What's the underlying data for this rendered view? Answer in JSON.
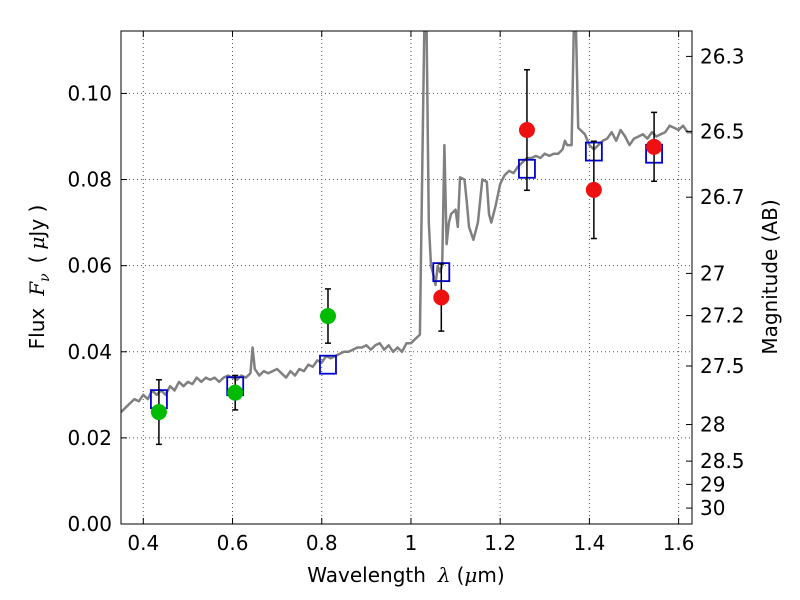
{
  "chart_data": {
    "type": "scatter",
    "xlabel_prefix": "Wavelength",
    "xlabel_symbol": "λ",
    "xlabel_unit_open": "(",
    "xlabel_unit_mu": "μ",
    "xlabel_unit_rest": "m)",
    "ylabel_prefix": "Flux",
    "ylabel_symbol_F": "F",
    "ylabel_symbol_nu": "ν",
    "ylabel_unit_open": "(",
    "ylabel_unit_mu": "μ",
    "ylabel_unit_rest": "Jy )",
    "ylabel_right": "Magnitude (AB)",
    "xlim": [
      0.35,
      1.63
    ],
    "ylim": [
      0.0,
      0.1145
    ],
    "grid": true,
    "x_ticks": [
      0.4,
      0.6,
      0.8,
      1.0,
      1.2,
      1.4,
      1.6
    ],
    "x_tick_labels": [
      "0.4",
      "0.6",
      "0.8",
      "1",
      "1.2",
      "1.4",
      "1.6"
    ],
    "y_ticks": [
      0.0,
      0.02,
      0.04,
      0.06,
      0.08,
      0.1
    ],
    "y_tick_labels": [
      "0.00",
      "0.02",
      "0.04",
      "0.06",
      "0.08",
      "0.10"
    ],
    "right_ticks": [
      {
        "label": "26.3",
        "flux": 0.1086
      },
      {
        "label": "26.5",
        "flux": 0.0912
      },
      {
        "label": "26.7",
        "flux": 0.0759
      },
      {
        "label": "27",
        "flux": 0.0582
      },
      {
        "label": "27.2",
        "flux": 0.0484
      },
      {
        "label": "27.5",
        "flux": 0.0367
      },
      {
        "label": "28",
        "flux": 0.0231
      },
      {
        "label": "28.5",
        "flux": 0.0146
      },
      {
        "label": "29",
        "flux": 0.0092
      },
      {
        "label": "30",
        "flux": 0.0037
      }
    ],
    "right_tick_marks_flux": [
      0.1086,
      0.0912,
      0.0759,
      0.0582,
      0.0484,
      0.0367,
      0.0231,
      0.0146,
      0.0092,
      0.0037
    ],
    "colors": {
      "spectrum": "#808080",
      "model": "#0000cc",
      "observed_optical": "#00bb00",
      "observed_ir": "#ee1111",
      "errorbar": "#000000",
      "grid": "#555555"
    },
    "series": [
      {
        "kind": "spectrum",
        "points": [
          [
            0.35,
            0.026
          ],
          [
            0.36,
            0.027
          ],
          [
            0.37,
            0.028
          ],
          [
            0.38,
            0.029
          ],
          [
            0.39,
            0.0285
          ],
          [
            0.4,
            0.03
          ],
          [
            0.41,
            0.029
          ],
          [
            0.42,
            0.031
          ],
          [
            0.43,
            0.03
          ],
          [
            0.44,
            0.031
          ],
          [
            0.45,
            0.03
          ],
          [
            0.46,
            0.032
          ],
          [
            0.47,
            0.031
          ],
          [
            0.48,
            0.033
          ],
          [
            0.49,
            0.032
          ],
          [
            0.5,
            0.033
          ],
          [
            0.51,
            0.0325
          ],
          [
            0.52,
            0.034
          ],
          [
            0.53,
            0.033
          ],
          [
            0.54,
            0.034
          ],
          [
            0.55,
            0.0335
          ],
          [
            0.56,
            0.034
          ],
          [
            0.57,
            0.033
          ],
          [
            0.58,
            0.034
          ],
          [
            0.59,
            0.0345
          ],
          [
            0.6,
            0.034
          ],
          [
            0.61,
            0.0335
          ],
          [
            0.62,
            0.0345
          ],
          [
            0.63,
            0.034
          ],
          [
            0.64,
            0.035
          ],
          [
            0.645,
            0.041
          ],
          [
            0.65,
            0.036
          ],
          [
            0.66,
            0.0345
          ],
          [
            0.67,
            0.0355
          ],
          [
            0.68,
            0.035
          ],
          [
            0.69,
            0.0355
          ],
          [
            0.7,
            0.036
          ],
          [
            0.71,
            0.035
          ],
          [
            0.72,
            0.034
          ],
          [
            0.73,
            0.0355
          ],
          [
            0.74,
            0.0345
          ],
          [
            0.75,
            0.036
          ],
          [
            0.76,
            0.0355
          ],
          [
            0.77,
            0.037
          ],
          [
            0.78,
            0.0365
          ],
          [
            0.79,
            0.038
          ],
          [
            0.8,
            0.0375
          ],
          [
            0.81,
            0.039
          ],
          [
            0.82,
            0.0385
          ],
          [
            0.83,
            0.039
          ],
          [
            0.84,
            0.0395
          ],
          [
            0.85,
            0.04
          ],
          [
            0.86,
            0.04
          ],
          [
            0.87,
            0.0405
          ],
          [
            0.88,
            0.041
          ],
          [
            0.89,
            0.041
          ],
          [
            0.9,
            0.0415
          ],
          [
            0.91,
            0.0405
          ],
          [
            0.92,
            0.0415
          ],
          [
            0.93,
            0.042
          ],
          [
            0.94,
            0.0405
          ],
          [
            0.95,
            0.0415
          ],
          [
            0.96,
            0.04
          ],
          [
            0.97,
            0.041
          ],
          [
            0.98,
            0.04
          ],
          [
            0.99,
            0.042
          ],
          [
            1.0,
            0.042
          ],
          [
            1.01,
            0.043
          ],
          [
            1.02,
            0.044
          ],
          [
            1.025,
            0.08
          ],
          [
            1.03,
            0.115
          ],
          [
            1.035,
            0.115
          ],
          [
            1.04,
            0.07
          ],
          [
            1.045,
            0.06
          ],
          [
            1.05,
            0.058
          ],
          [
            1.055,
            0.0555
          ],
          [
            1.06,
            0.06
          ],
          [
            1.065,
            0.0585
          ],
          [
            1.07,
            0.06
          ],
          [
            1.075,
            0.088
          ],
          [
            1.08,
            0.065
          ],
          [
            1.085,
            0.07
          ],
          [
            1.09,
            0.072
          ],
          [
            1.1,
            0.073
          ],
          [
            1.105,
            0.069
          ],
          [
            1.11,
            0.0805
          ],
          [
            1.12,
            0.08
          ],
          [
            1.125,
            0.075
          ],
          [
            1.13,
            0.069
          ],
          [
            1.14,
            0.066
          ],
          [
            1.15,
            0.07
          ],
          [
            1.16,
            0.08
          ],
          [
            1.17,
            0.0795
          ],
          [
            1.175,
            0.072
          ],
          [
            1.18,
            0.07
          ],
          [
            1.19,
            0.074
          ],
          [
            1.2,
            0.079
          ],
          [
            1.21,
            0.081
          ],
          [
            1.22,
            0.082
          ],
          [
            1.23,
            0.0815
          ],
          [
            1.24,
            0.083
          ],
          [
            1.25,
            0.084
          ],
          [
            1.26,
            0.085
          ],
          [
            1.27,
            0.085
          ],
          [
            1.28,
            0.0855
          ],
          [
            1.29,
            0.085
          ],
          [
            1.3,
            0.086
          ],
          [
            1.31,
            0.0855
          ],
          [
            1.32,
            0.086
          ],
          [
            1.33,
            0.086
          ],
          [
            1.34,
            0.087
          ],
          [
            1.345,
            0.089
          ],
          [
            1.35,
            0.088
          ],
          [
            1.36,
            0.088
          ],
          [
            1.365,
            0.115
          ],
          [
            1.37,
            0.115
          ],
          [
            1.375,
            0.092
          ],
          [
            1.38,
            0.0915
          ],
          [
            1.39,
            0.0905
          ],
          [
            1.4,
            0.088
          ],
          [
            1.41,
            0.087
          ],
          [
            1.42,
            0.088
          ],
          [
            1.43,
            0.089
          ],
          [
            1.44,
            0.0895
          ],
          [
            1.45,
            0.091
          ],
          [
            1.46,
            0.089
          ],
          [
            1.47,
            0.0915
          ],
          [
            1.48,
            0.09
          ],
          [
            1.49,
            0.088
          ],
          [
            1.5,
            0.0895
          ],
          [
            1.51,
            0.09
          ],
          [
            1.52,
            0.0905
          ],
          [
            1.53,
            0.0895
          ],
          [
            1.54,
            0.091
          ],
          [
            1.55,
            0.09
          ],
          [
            1.56,
            0.0905
          ],
          [
            1.57,
            0.091
          ],
          [
            1.58,
            0.0925
          ],
          [
            1.59,
            0.092
          ],
          [
            1.6,
            0.0915
          ],
          [
            1.61,
            0.0925
          ],
          [
            1.62,
            0.091
          ],
          [
            1.63,
            0.091
          ]
        ]
      },
      {
        "kind": "model_photometry",
        "points": [
          [
            0.435,
            0.029
          ],
          [
            0.606,
            0.032
          ],
          [
            0.814,
            0.037
          ],
          [
            1.068,
            0.0585
          ],
          [
            1.26,
            0.0825
          ],
          [
            1.41,
            0.0865
          ],
          [
            1.545,
            0.086
          ]
        ]
      },
      {
        "kind": "observed_optical",
        "points": [
          {
            "x": 0.435,
            "y": 0.026,
            "yerr": 0.0075
          },
          {
            "x": 0.606,
            "y": 0.0305,
            "yerr": 0.004
          },
          {
            "x": 0.814,
            "y": 0.0483,
            "yerr": 0.0063
          }
        ]
      },
      {
        "kind": "observed_ir",
        "points": [
          {
            "x": 1.068,
            "y": 0.0526,
            "yerr": 0.0078
          },
          {
            "x": 1.26,
            "y": 0.0915,
            "yerr": 0.014
          },
          {
            "x": 1.41,
            "y": 0.0776,
            "yerr": 0.0113
          },
          {
            "x": 1.545,
            "y": 0.0876,
            "yerr": 0.008
          }
        ]
      }
    ]
  }
}
